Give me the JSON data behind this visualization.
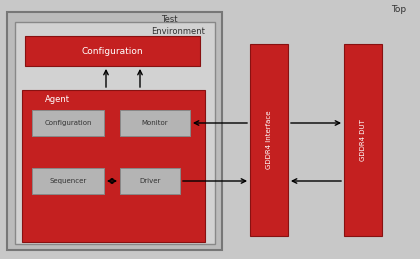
{
  "bg_main": "#c8c8c8",
  "bg_test": "#b8b8b8",
  "bg_env": "#d0d0d0",
  "red": "#c42020",
  "gray_box": "#b4b4b4",
  "title_top": "Top",
  "title_test": "Test",
  "title_env": "Environment",
  "title_agent": "Agent",
  "label_config_env": "Configuration",
  "label_config_agent": "Configuration",
  "label_monitor": "Monitor",
  "label_sequencer": "Sequencer",
  "label_driver": "Driver",
  "label_gddr4_iface": "GDDR4 Interface",
  "label_gddr4_dut": "GDDR4 DUT"
}
